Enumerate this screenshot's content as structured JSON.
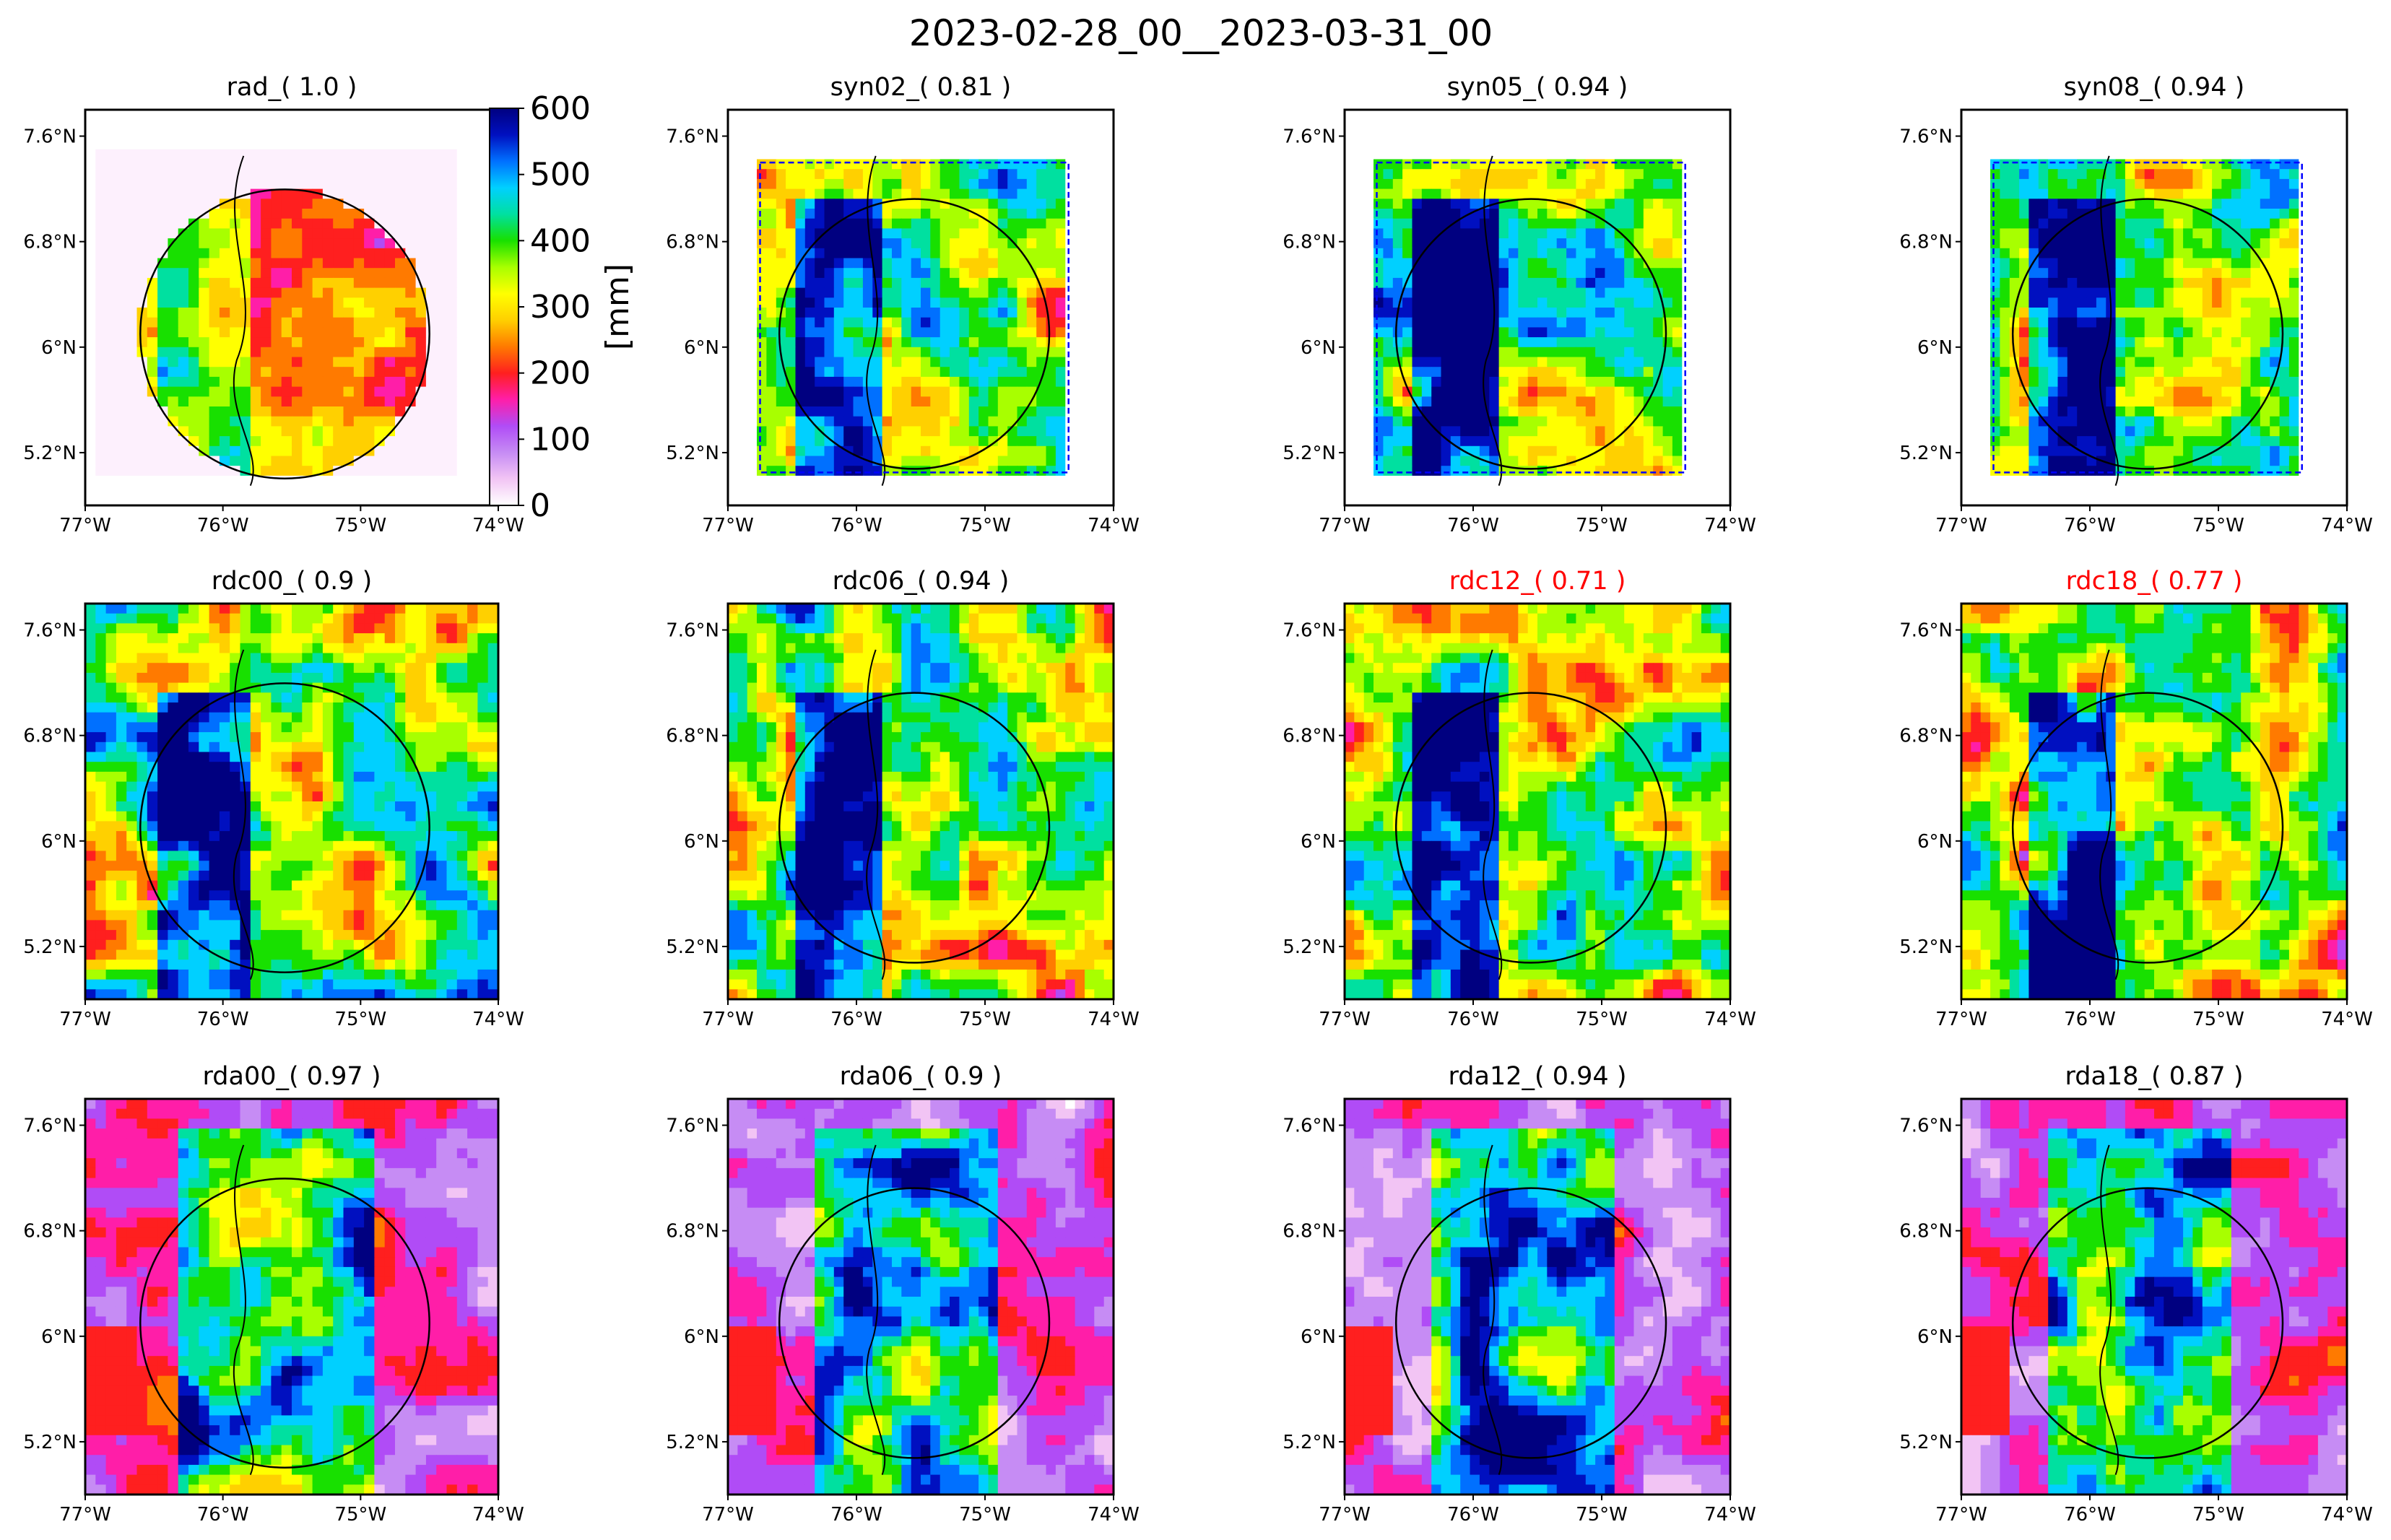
{
  "figure_title": "2023-02-28_00__2023-03-31_00",
  "colors": {
    "title_normal": "#000000",
    "title_highlight": "#ff0000",
    "colormap": [
      "#ffffff",
      "#f2c4f4",
      "#c68cf4",
      "#b04cf6",
      "#ff1ea8",
      "#ff1f1f",
      "#ff7a00",
      "#ffd000",
      "#ffff00",
      "#a8ff00",
      "#18e000",
      "#00e0a0",
      "#00d0ff",
      "#0070ff",
      "#0010c0",
      "#000080"
    ],
    "radar_circle": "#000000",
    "domain_box": "#0000ff"
  },
  "colorbar": {
    "label": "[mm]",
    "ticks": [
      "0",
      "100",
      "200",
      "300",
      "400",
      "500",
      "600"
    ],
    "range": [
      0,
      600
    ]
  },
  "axis_ticks": {
    "x": [
      "77°W",
      "76°W",
      "75°W",
      "74°W"
    ],
    "y": [
      "7.6°N",
      "6.8°N",
      "6°N",
      "5.2°N"
    ]
  },
  "chart_data": {
    "type": "heatmap",
    "title": "2023-02-28_00__2023-03-31_00",
    "colorbar_label": "[mm]",
    "value_range": [
      0,
      600
    ],
    "lon_range": [
      -77,
      -74
    ],
    "lat_range": [
      4.8,
      7.8
    ],
    "panels": [
      {
        "name": "rad",
        "title": "rad_( 1.0 )",
        "score": 1.0,
        "highlight": false,
        "style": "circle",
        "mean_value": 180
      },
      {
        "name": "syn02",
        "title": "syn02_( 0.81 )",
        "score": 0.81,
        "highlight": false,
        "style": "box",
        "mean_value": 380
      },
      {
        "name": "syn05",
        "title": "syn05_( 0.94 )",
        "score": 0.94,
        "highlight": false,
        "style": "box",
        "mean_value": 360
      },
      {
        "name": "syn08",
        "title": "syn08_( 0.94 )",
        "score": 0.94,
        "highlight": false,
        "style": "box",
        "mean_value": 370
      },
      {
        "name": "rdc00",
        "title": "rdc00_( 0.9 )",
        "score": 0.9,
        "highlight": false,
        "style": "full",
        "mean_value": 380
      },
      {
        "name": "rdc06",
        "title": "rdc06_( 0.94 )",
        "score": 0.94,
        "highlight": false,
        "style": "full",
        "mean_value": 360
      },
      {
        "name": "rdc12",
        "title": "rdc12_( 0.71 )",
        "score": 0.71,
        "highlight": true,
        "style": "full",
        "mean_value": 300
      },
      {
        "name": "rdc18",
        "title": "rdc18_( 0.77 )",
        "score": 0.77,
        "highlight": true,
        "style": "full",
        "mean_value": 340
      },
      {
        "name": "rda00",
        "title": "rda00_( 0.97 )",
        "score": 0.97,
        "highlight": false,
        "style": "rda",
        "mean_value": 150
      },
      {
        "name": "rda06",
        "title": "rda06_( 0.9 )",
        "score": 0.9,
        "highlight": false,
        "style": "rda",
        "mean_value": 140
      },
      {
        "name": "rda12",
        "title": "rda12_( 0.94 )",
        "score": 0.94,
        "highlight": false,
        "style": "rda",
        "mean_value": 150
      },
      {
        "name": "rda18",
        "title": "rda18_( 0.87 )",
        "score": 0.87,
        "highlight": false,
        "style": "rda",
        "mean_value": 140
      }
    ]
  }
}
